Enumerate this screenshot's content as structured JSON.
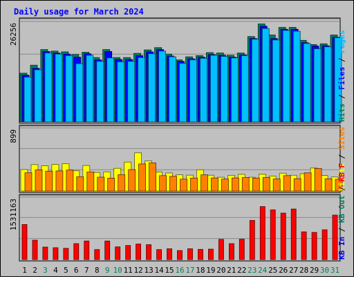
{
  "title": "Daily usage for March 2024",
  "colors": {
    "hits": "#00805c",
    "files": "#0000ff",
    "pages": "#00c0ff",
    "visits": "#ffff00",
    "sites": "#ff8000",
    "kbytes": "#ff0000",
    "day_normal": "#000000",
    "day_weekend": "#00805c",
    "plot_bg": "#c0c0c0",
    "title": "#0000ff"
  },
  "legend_top": [
    {
      "label": "Hits",
      "color_key": "hits"
    },
    {
      "label": "Files",
      "color_key": "files"
    },
    {
      "label": "Pages",
      "color_key": "pages"
    }
  ],
  "legend_mid": [
    {
      "label": "Visits",
      "color_key": "visits"
    },
    {
      "label": "Sites",
      "color_key": "sites"
    }
  ],
  "legend_bot": [
    {
      "label": "KB In",
      "color_key": "files"
    },
    {
      "label": "KB Out",
      "color_key": "hits"
    },
    {
      "label": "KB F",
      "color_key": "kbytes"
    }
  ],
  "chart_data": {
    "type": "bar",
    "title": "Daily usage for March 2024",
    "categories": [
      "1",
      "2",
      "3",
      "4",
      "5",
      "6",
      "7",
      "8",
      "9",
      "10",
      "11",
      "12",
      "13",
      "14",
      "15",
      "16",
      "17",
      "18",
      "19",
      "20",
      "21",
      "22",
      "23",
      "24",
      "25",
      "26",
      "27",
      "28",
      "29",
      "30",
      "31"
    ],
    "weekend_days": [
      "3",
      "9",
      "10",
      "16",
      "17",
      "23",
      "24",
      "30",
      "31"
    ],
    "panels": [
      {
        "name": "hits",
        "ymax_label": "26256",
        "ylim": [
          0,
          26256
        ],
        "series": [
          {
            "name": "Hits",
            "values": [
              12700,
              14800,
              18900,
              18500,
              18300,
              17600,
              18200,
              16800,
              18900,
              16800,
              16800,
              17900,
              18800,
              19400,
              17700,
              16200,
              17000,
              17300,
              18100,
              18000,
              17400,
              18000,
              22300,
              25600,
              22700,
              24700,
              24700,
              21300,
              20200,
              20400,
              22700
            ]
          },
          {
            "name": "Files",
            "values": [
              12200,
              14000,
              18400,
              18000,
              17700,
              16900,
              17800,
              16200,
              18400,
              16300,
              16300,
              17300,
              18300,
              18900,
              17200,
              15800,
              16500,
              16900,
              17600,
              17400,
              16900,
              17500,
              21800,
              25000,
              21800,
              24200,
              24200,
              20700,
              19800,
              19900,
              22100
            ]
          },
          {
            "name": "Pages",
            "values": [
              11700,
              13600,
              18000,
              17700,
              17300,
              15200,
              17400,
              15800,
              16700,
              15700,
              15800,
              16800,
              17800,
              18500,
              17000,
              15300,
              16200,
              16600,
              17400,
              17100,
              16700,
              17300,
              21600,
              24400,
              21400,
              23900,
              23700,
              20500,
              19100,
              19600,
              22000
            ]
          }
        ]
      },
      {
        "name": "visits",
        "ymax_label": "899",
        "ylim": [
          0,
          899
        ],
        "series": [
          {
            "name": "Visits",
            "values": [
              306,
              377,
              360,
              379,
              390,
              288,
              364,
              264,
              272,
              324,
              412,
              544,
              429,
              271,
              257,
              232,
              226,
              303,
              225,
              196,
              224,
              238,
              196,
              239,
              214,
              254,
              225,
              247,
              327,
              221,
              200
            ]
          },
          {
            "name": "Sites",
            "values": [
              260,
              301,
              283,
              286,
              299,
              204,
              272,
              197,
              183,
              233,
              306,
              386,
              401,
              219,
              209,
              170,
              184,
              231,
              185,
              171,
              186,
              192,
              184,
              193,
              173,
              219,
              176,
              259,
              322,
              175,
              168
            ]
          }
        ]
      },
      {
        "name": "kbytes",
        "ymax_label": "1531163",
        "ylim": [
          0,
          1531163
        ],
        "series": [
          {
            "name": "KB F",
            "values": [
              860000,
              475000,
              305000,
              290000,
              275000,
              390000,
              455000,
              245000,
              455000,
              310000,
              345000,
              380000,
              365000,
              245000,
              265000,
              220000,
              265000,
              250000,
              255000,
              495000,
              390000,
              500000,
              960000,
              1300000,
              1220000,
              1140000,
              1240000,
              680000,
              665000,
              730000,
              1090000
            ]
          }
        ]
      }
    ]
  }
}
